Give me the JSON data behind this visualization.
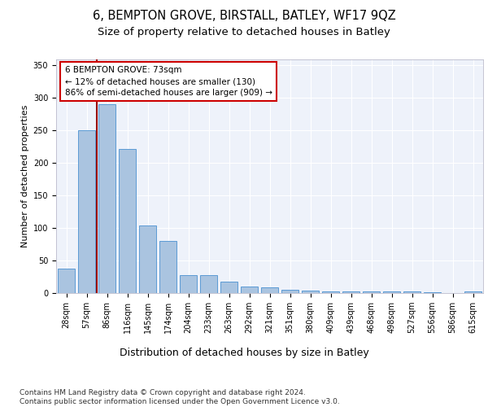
{
  "title1": "6, BEMPTON GROVE, BIRSTALL, BATLEY, WF17 9QZ",
  "title2": "Size of property relative to detached houses in Batley",
  "xlabel": "Distribution of detached houses by size in Batley",
  "ylabel": "Number of detached properties",
  "categories": [
    "28sqm",
    "57sqm",
    "86sqm",
    "116sqm",
    "145sqm",
    "174sqm",
    "204sqm",
    "233sqm",
    "263sqm",
    "292sqm",
    "321sqm",
    "351sqm",
    "380sqm",
    "409sqm",
    "439sqm",
    "468sqm",
    "498sqm",
    "527sqm",
    "556sqm",
    "586sqm",
    "615sqm"
  ],
  "values": [
    38,
    250,
    290,
    222,
    104,
    80,
    28,
    28,
    17,
    10,
    9,
    5,
    4,
    3,
    3,
    2,
    2,
    2,
    1,
    0,
    2
  ],
  "bar_color": "#aac4e0",
  "bar_edge_color": "#5b9bd5",
  "vline_color": "#990000",
  "annotation_text": "6 BEMPTON GROVE: 73sqm\n← 12% of detached houses are smaller (130)\n86% of semi-detached houses are larger (909) →",
  "annotation_box_color": "#ffffff",
  "annotation_box_edge": "#cc0000",
  "ylim": [
    0,
    360
  ],
  "yticks": [
    0,
    50,
    100,
    150,
    200,
    250,
    300,
    350
  ],
  "footer": "Contains HM Land Registry data © Crown copyright and database right 2024.\nContains public sector information licensed under the Open Government Licence v3.0.",
  "plot_bg_color": "#eef2fa",
  "title1_fontsize": 10.5,
  "title2_fontsize": 9.5,
  "xlabel_fontsize": 9,
  "ylabel_fontsize": 8,
  "tick_fontsize": 7,
  "footer_fontsize": 6.5,
  "annotation_fontsize": 7.5
}
